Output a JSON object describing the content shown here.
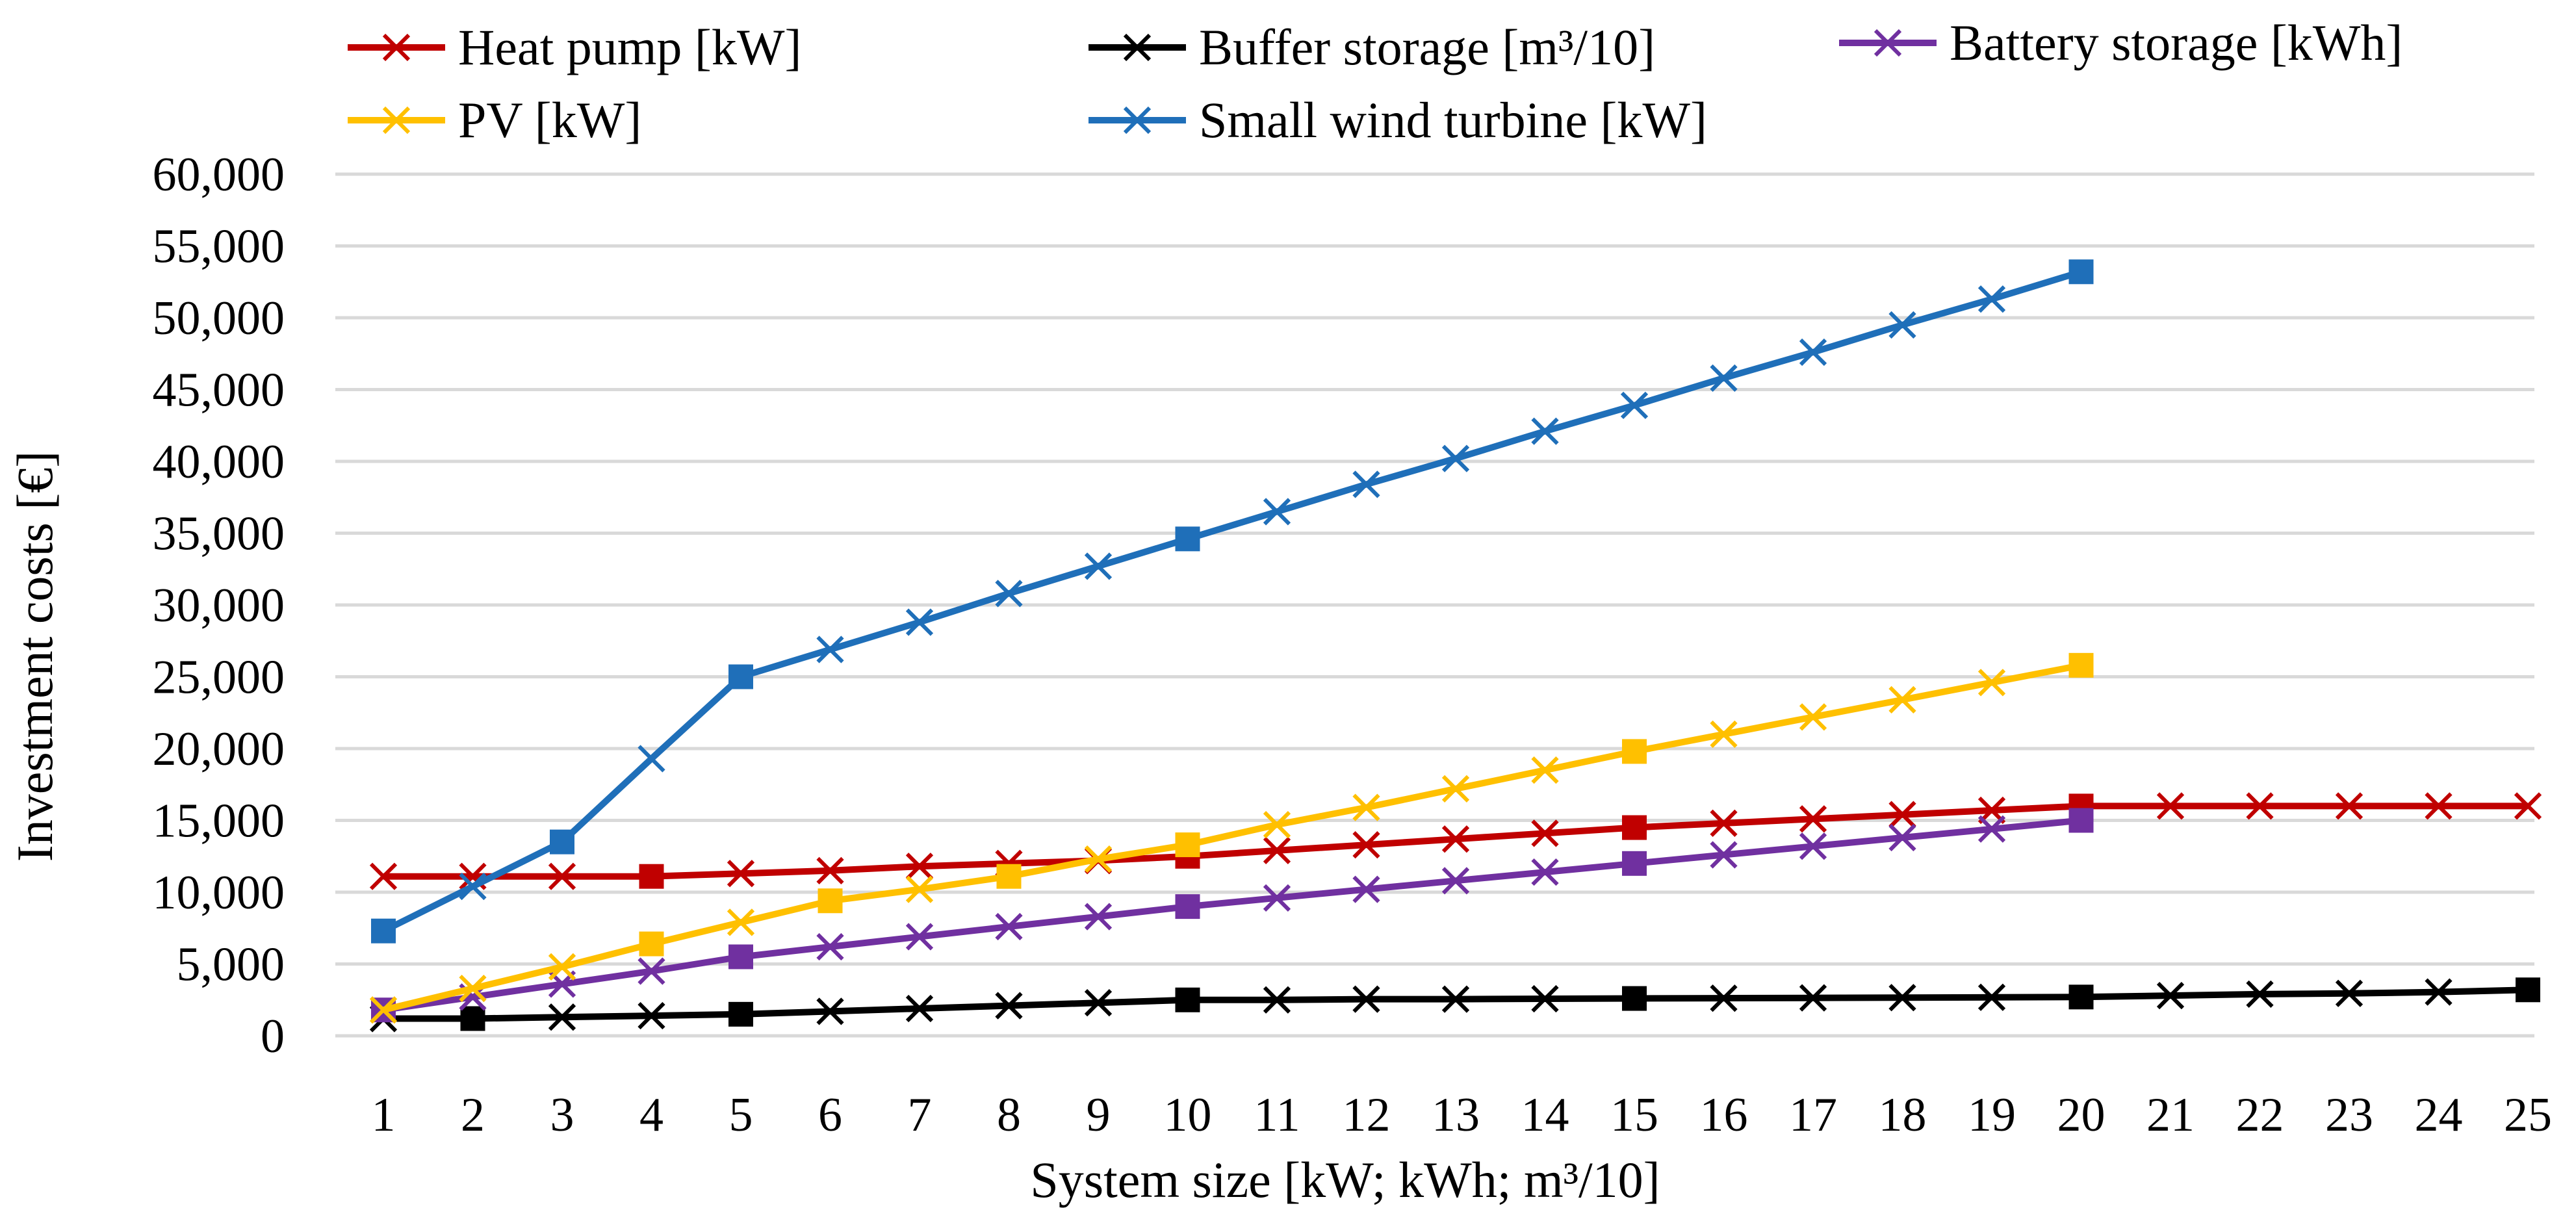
{
  "chart_data": {
    "type": "line",
    "xlabel": "System size [kW; kWh; m³/10]",
    "ylabel": "Investment costs [€]",
    "ylim": [
      0,
      60000
    ],
    "ytick_step": 5000,
    "ytick_labels": [
      "0",
      "5,000",
      "10,000",
      "15,000",
      "20,000",
      "25,000",
      "30,000",
      "35,000",
      "40,000",
      "45,000",
      "50,000",
      "55,000",
      "60,000"
    ],
    "categories": [
      "1",
      "2",
      "3",
      "4",
      "5",
      "6",
      "7",
      "8",
      "9",
      "10",
      "11",
      "12",
      "13",
      "14",
      "15",
      "16",
      "17",
      "18",
      "19",
      "20",
      "21",
      "22",
      "23",
      "24",
      "25"
    ],
    "grid": true,
    "legend_position": "top",
    "series": [
      {
        "name": "Heat pump [kW]",
        "color": "#c00000",
        "values": [
          11100,
          11100,
          11100,
          11100,
          11300,
          11500,
          11800,
          12000,
          12200,
          12500,
          12900,
          13300,
          13700,
          14100,
          14500,
          14800,
          15100,
          15400,
          15700,
          16000,
          16000,
          16000,
          16000,
          16000,
          16000
        ],
        "square_markers_at": [
          4,
          10,
          15,
          20
        ]
      },
      {
        "name": "Buffer storage [m³/10]",
        "color": "#000000",
        "values": [
          1200,
          1200,
          1300,
          1400,
          1500,
          1700,
          1900,
          2100,
          2300,
          2500,
          2500,
          2550,
          2550,
          2580,
          2600,
          2620,
          2640,
          2660,
          2680,
          2700,
          2800,
          2900,
          2950,
          3050,
          3200
        ],
        "square_markers_at": [
          2,
          5,
          10,
          15,
          20,
          25
        ]
      },
      {
        "name": "Battery storage [kWh]",
        "color": "#7030a0",
        "values": [
          1800,
          2700,
          3600,
          4500,
          5500,
          6200,
          6900,
          7600,
          8300,
          9000,
          9600,
          10200,
          10800,
          11400,
          12000,
          12600,
          13200,
          13800,
          14400,
          15000,
          null,
          null,
          null,
          null,
          null
        ],
        "square_markers_at": [
          1,
          5,
          10,
          15,
          20
        ]
      },
      {
        "name": "PV [kW]",
        "color": "#ffc000",
        "values": [
          1800,
          3300,
          4800,
          6400,
          7900,
          9400,
          10200,
          11100,
          12300,
          13300,
          14700,
          15900,
          17200,
          18500,
          19800,
          21000,
          22200,
          23400,
          24600,
          25800,
          null,
          null,
          null,
          null,
          null
        ],
        "square_markers_at": [
          4,
          6,
          8,
          10,
          15,
          20
        ]
      },
      {
        "name": "Small wind turbine [kW]",
        "color": "#1f6fb9",
        "values": [
          7300,
          10400,
          13500,
          19300,
          25000,
          26900,
          28800,
          30800,
          32700,
          34600,
          36500,
          38400,
          40200,
          42100,
          43900,
          45800,
          47600,
          49500,
          51300,
          53200,
          null,
          null,
          null,
          null,
          null
        ],
        "square_markers_at": [
          1,
          3,
          5,
          10,
          20
        ]
      }
    ]
  }
}
